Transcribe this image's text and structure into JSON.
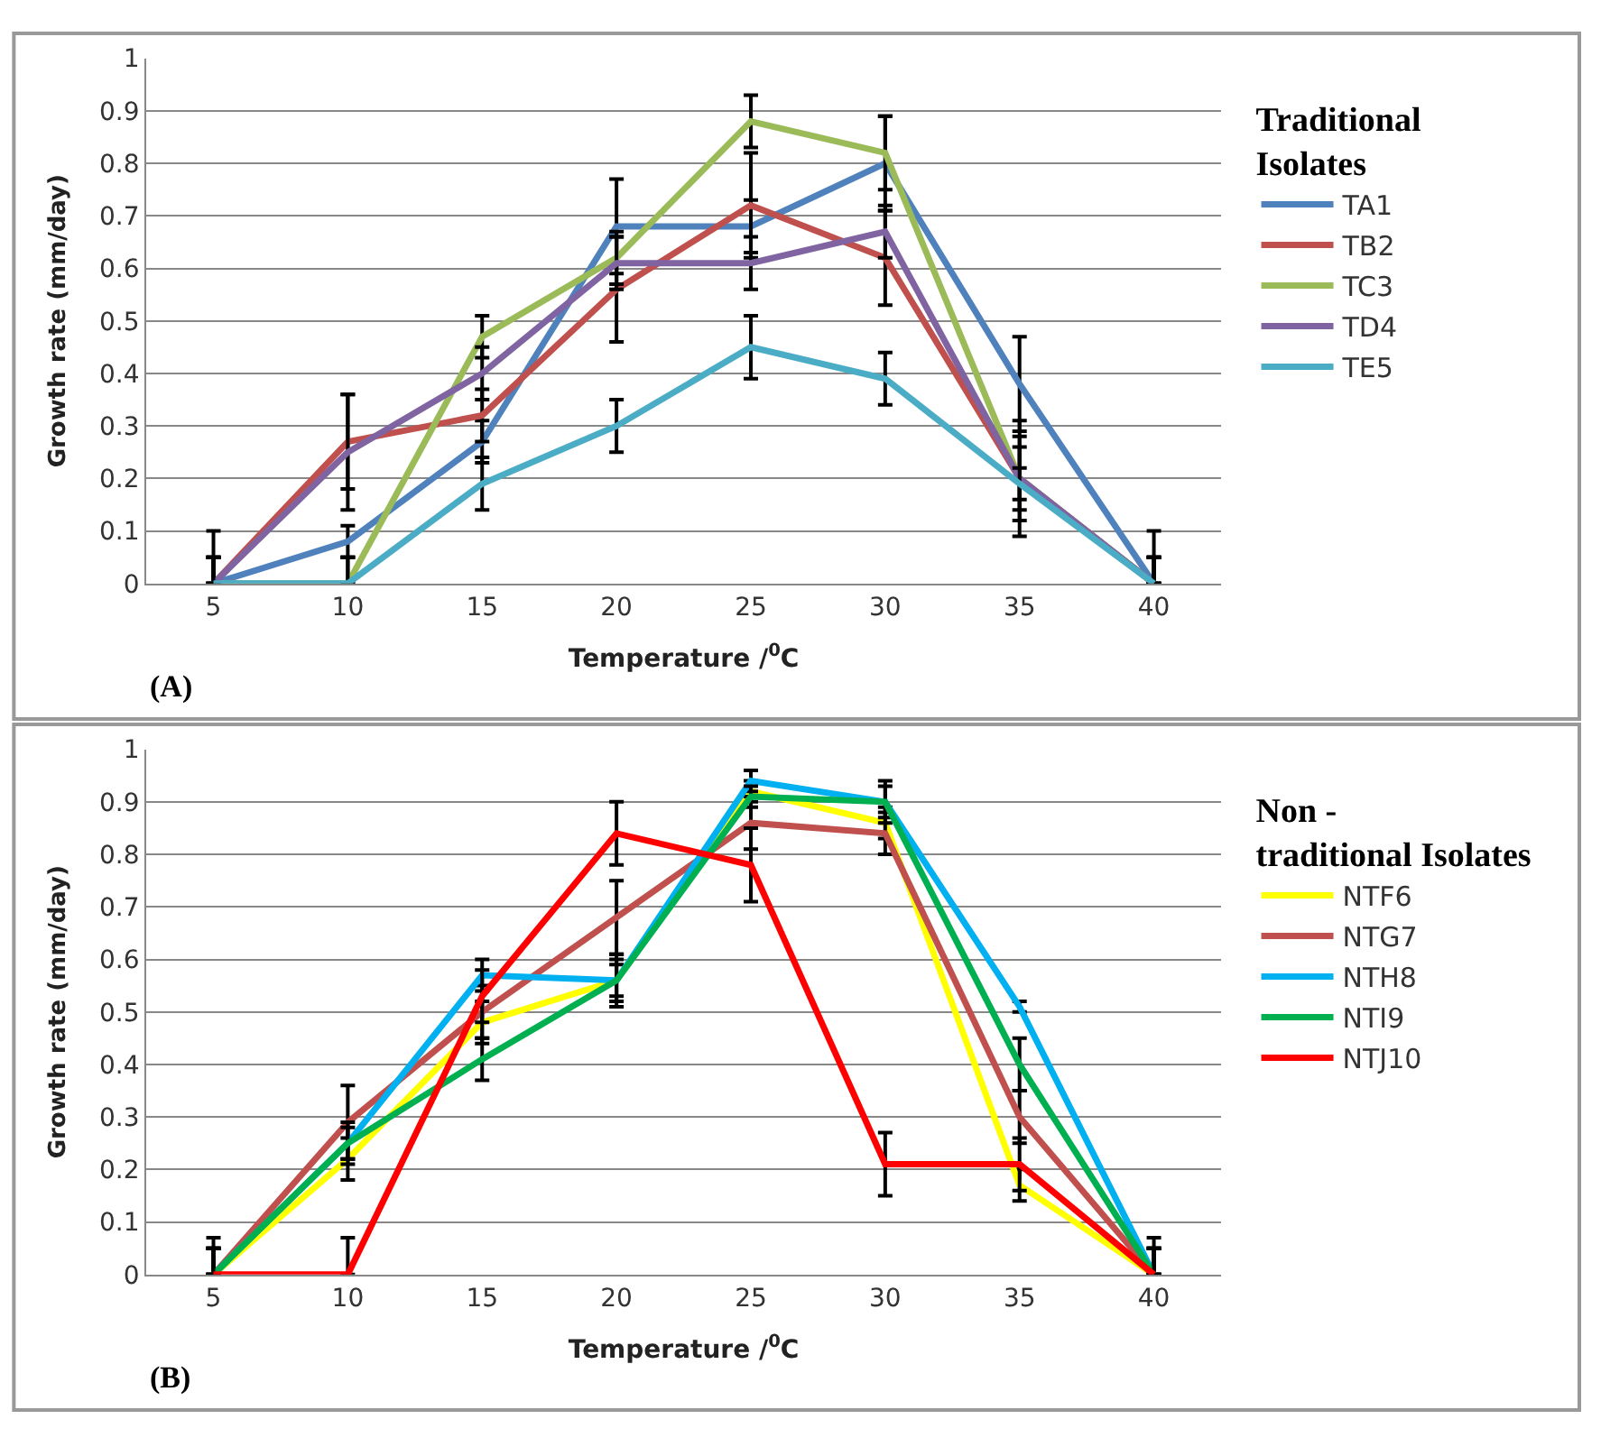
{
  "chart_data": [
    {
      "type": "line",
      "xlabel": "Temperature /$^{0}$C",
      "ylabel": "Growth rate (mm/day)",
      "legend_title": "Traditional Isolates",
      "annotations": [
        "(A)"
      ],
      "categories": [
        "5",
        "10",
        "15",
        "20",
        "25",
        "30",
        "35",
        "40"
      ],
      "ylim": [
        0,
        1
      ],
      "yticks": [
        0,
        0.1,
        0.2,
        0.3,
        0.4,
        0.5,
        0.6,
        0.7,
        0.8,
        0.9,
        1
      ],
      "grid": "y",
      "legend": "right",
      "marker": "none",
      "line_style": "solid",
      "series": [
        {
          "name": "TA1",
          "color": "#4f81bd",
          "values": [
            0,
            0.08,
            0.27,
            0.68,
            0.68,
            0.8,
            0.38,
            0
          ],
          "errors": [
            [
              0,
              0.1
            ],
            0.03,
            0.04,
            0.09,
            0.05,
            0.09,
            0.09,
            [
              0,
              0.1
            ]
          ]
        },
        {
          "name": "TB2",
          "color": "#c0504d",
          "values": [
            0,
            0.27,
            0.32,
            0.56,
            0.72,
            0.62,
            0.2,
            0
          ],
          "errors": [
            [
              0,
              0.05
            ],
            0.09,
            0.05,
            0.1,
            0.1,
            0.09,
            0.08,
            [
              0,
              0.05
            ]
          ]
        },
        {
          "name": "TC3",
          "color": "#9bbb59",
          "values": [
            0,
            0,
            0.47,
            0.62,
            0.88,
            0.82,
            0.2,
            0
          ],
          "errors": [
            [
              0,
              0.05
            ],
            [
              0,
              0.05
            ],
            0.04,
            0.05,
            0.05,
            0.07,
            0.11,
            [
              0,
              0.05
            ]
          ]
        },
        {
          "name": "TD4",
          "color": "#8064a2",
          "values": [
            0,
            0.25,
            0.4,
            0.61,
            0.61,
            0.67,
            0.2,
            0
          ],
          "errors": [
            [
              0,
              0.05
            ],
            0.11,
            0.05,
            0.05,
            0.05,
            0.05,
            0.06,
            [
              0,
              0.05
            ]
          ]
        },
        {
          "name": "TE5",
          "color": "#4bacc6",
          "values": [
            0,
            0,
            0.19,
            0.3,
            0.45,
            0.39,
            0.19,
            0
          ],
          "errors": [
            [
              0,
              0.05
            ],
            [
              0,
              0.05
            ],
            0.05,
            0.05,
            0.06,
            0.05,
            0.03,
            [
              0,
              0.05
            ]
          ]
        }
      ]
    },
    {
      "type": "line",
      "xlabel": "Temperature /$^{0}$C",
      "ylabel": "Growth rate (mm/day)",
      "legend_title": "Non - traditional Isolates",
      "annotations": [
        "(B)"
      ],
      "categories": [
        "5",
        "10",
        "15",
        "20",
        "25",
        "30",
        "35",
        "40"
      ],
      "ylim": [
        0,
        1
      ],
      "yticks": [
        0,
        0.1,
        0.2,
        0.3,
        0.4,
        0.5,
        0.6,
        0.7,
        0.8,
        0.9,
        1
      ],
      "grid": "y",
      "legend": "right",
      "marker": "none",
      "line_style": "solid",
      "series": [
        {
          "name": "NTF6",
          "color": "#ffff00",
          "values": [
            0,
            0.22,
            0.48,
            0.56,
            0.92,
            0.86,
            0.17,
            0
          ],
          "errors": [
            [
              0,
              0.05
            ],
            0.04,
            0.04,
            0.03,
            0.02,
            0.03,
            0.03,
            [
              0,
              0.05
            ]
          ]
        },
        {
          "name": "NTG7",
          "color": "#c0504d",
          "values": [
            0,
            0.29,
            0.5,
            0.68,
            0.86,
            0.84,
            0.3,
            0
          ],
          "errors": [
            [
              0,
              0.07
            ],
            0.07,
            0.05,
            0.07,
            0.05,
            0.04,
            0.05,
            [
              0,
              0.07
            ]
          ]
        },
        {
          "name": "NTH8",
          "color": "#00b0f0",
          "values": [
            0,
            0.25,
            0.57,
            0.56,
            0.94,
            0.9,
            0.51,
            0
          ],
          "errors": [
            [
              0,
              0.05
            ],
            0.04,
            0.03,
            0.04,
            0.02,
            0.03,
            0.01,
            [
              0,
              0.05
            ]
          ]
        },
        {
          "name": "NTI9",
          "color": "#00b050",
          "values": [
            0,
            0.25,
            0.41,
            0.56,
            0.91,
            0.9,
            0.4,
            0
          ],
          "errors": [
            [
              0,
              0.05
            ],
            0.03,
            0.04,
            0.05,
            0.02,
            0.04,
            0.05,
            [
              0,
              0.05
            ]
          ]
        },
        {
          "name": "NTJ10",
          "color": "#ff0000",
          "values": [
            0,
            0,
            0.53,
            0.84,
            0.78,
            0.21,
            0.21,
            0
          ],
          "errors": [
            [
              0,
              0.05
            ],
            [
              0,
              0.07
            ],
            0.05,
            0.06,
            0.07,
            0.06,
            0.05,
            [
              0,
              0.05
            ]
          ]
        }
      ]
    }
  ]
}
